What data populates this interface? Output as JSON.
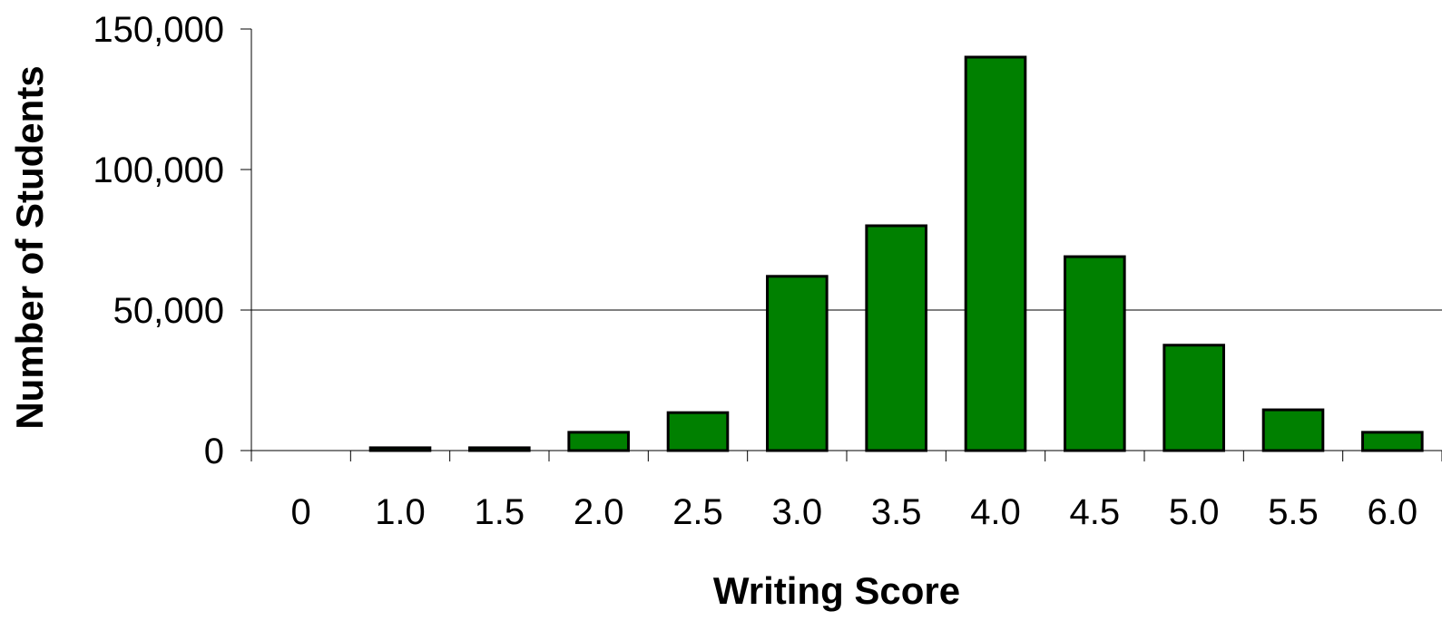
{
  "chart_data": {
    "type": "bar",
    "xlabel": "Writing Score",
    "ylabel": "Number of Students",
    "categories": [
      "0",
      "1.0",
      "1.5",
      "2.0",
      "2.5",
      "3.0",
      "3.5",
      "4.0",
      "4.5",
      "5.0",
      "5.5",
      "6.0"
    ],
    "values": [
      0,
      1000,
      1000,
      6500,
      13500,
      62000,
      80000,
      140000,
      69000,
      37500,
      14500,
      6500
    ],
    "ylim": [
      0,
      150000
    ],
    "yticks": [
      0,
      50000,
      100000,
      150000
    ],
    "ytick_labels": [
      "0",
      "50,000",
      "100,000",
      "150,000"
    ],
    "gridlines": [
      50000
    ],
    "grid": "horizontal at 50,000 only",
    "legend": "none",
    "colors": {
      "bar_fill": "#008000",
      "bar_stroke": "#000000",
      "axis": "#000000",
      "gridline": "#000000"
    }
  }
}
